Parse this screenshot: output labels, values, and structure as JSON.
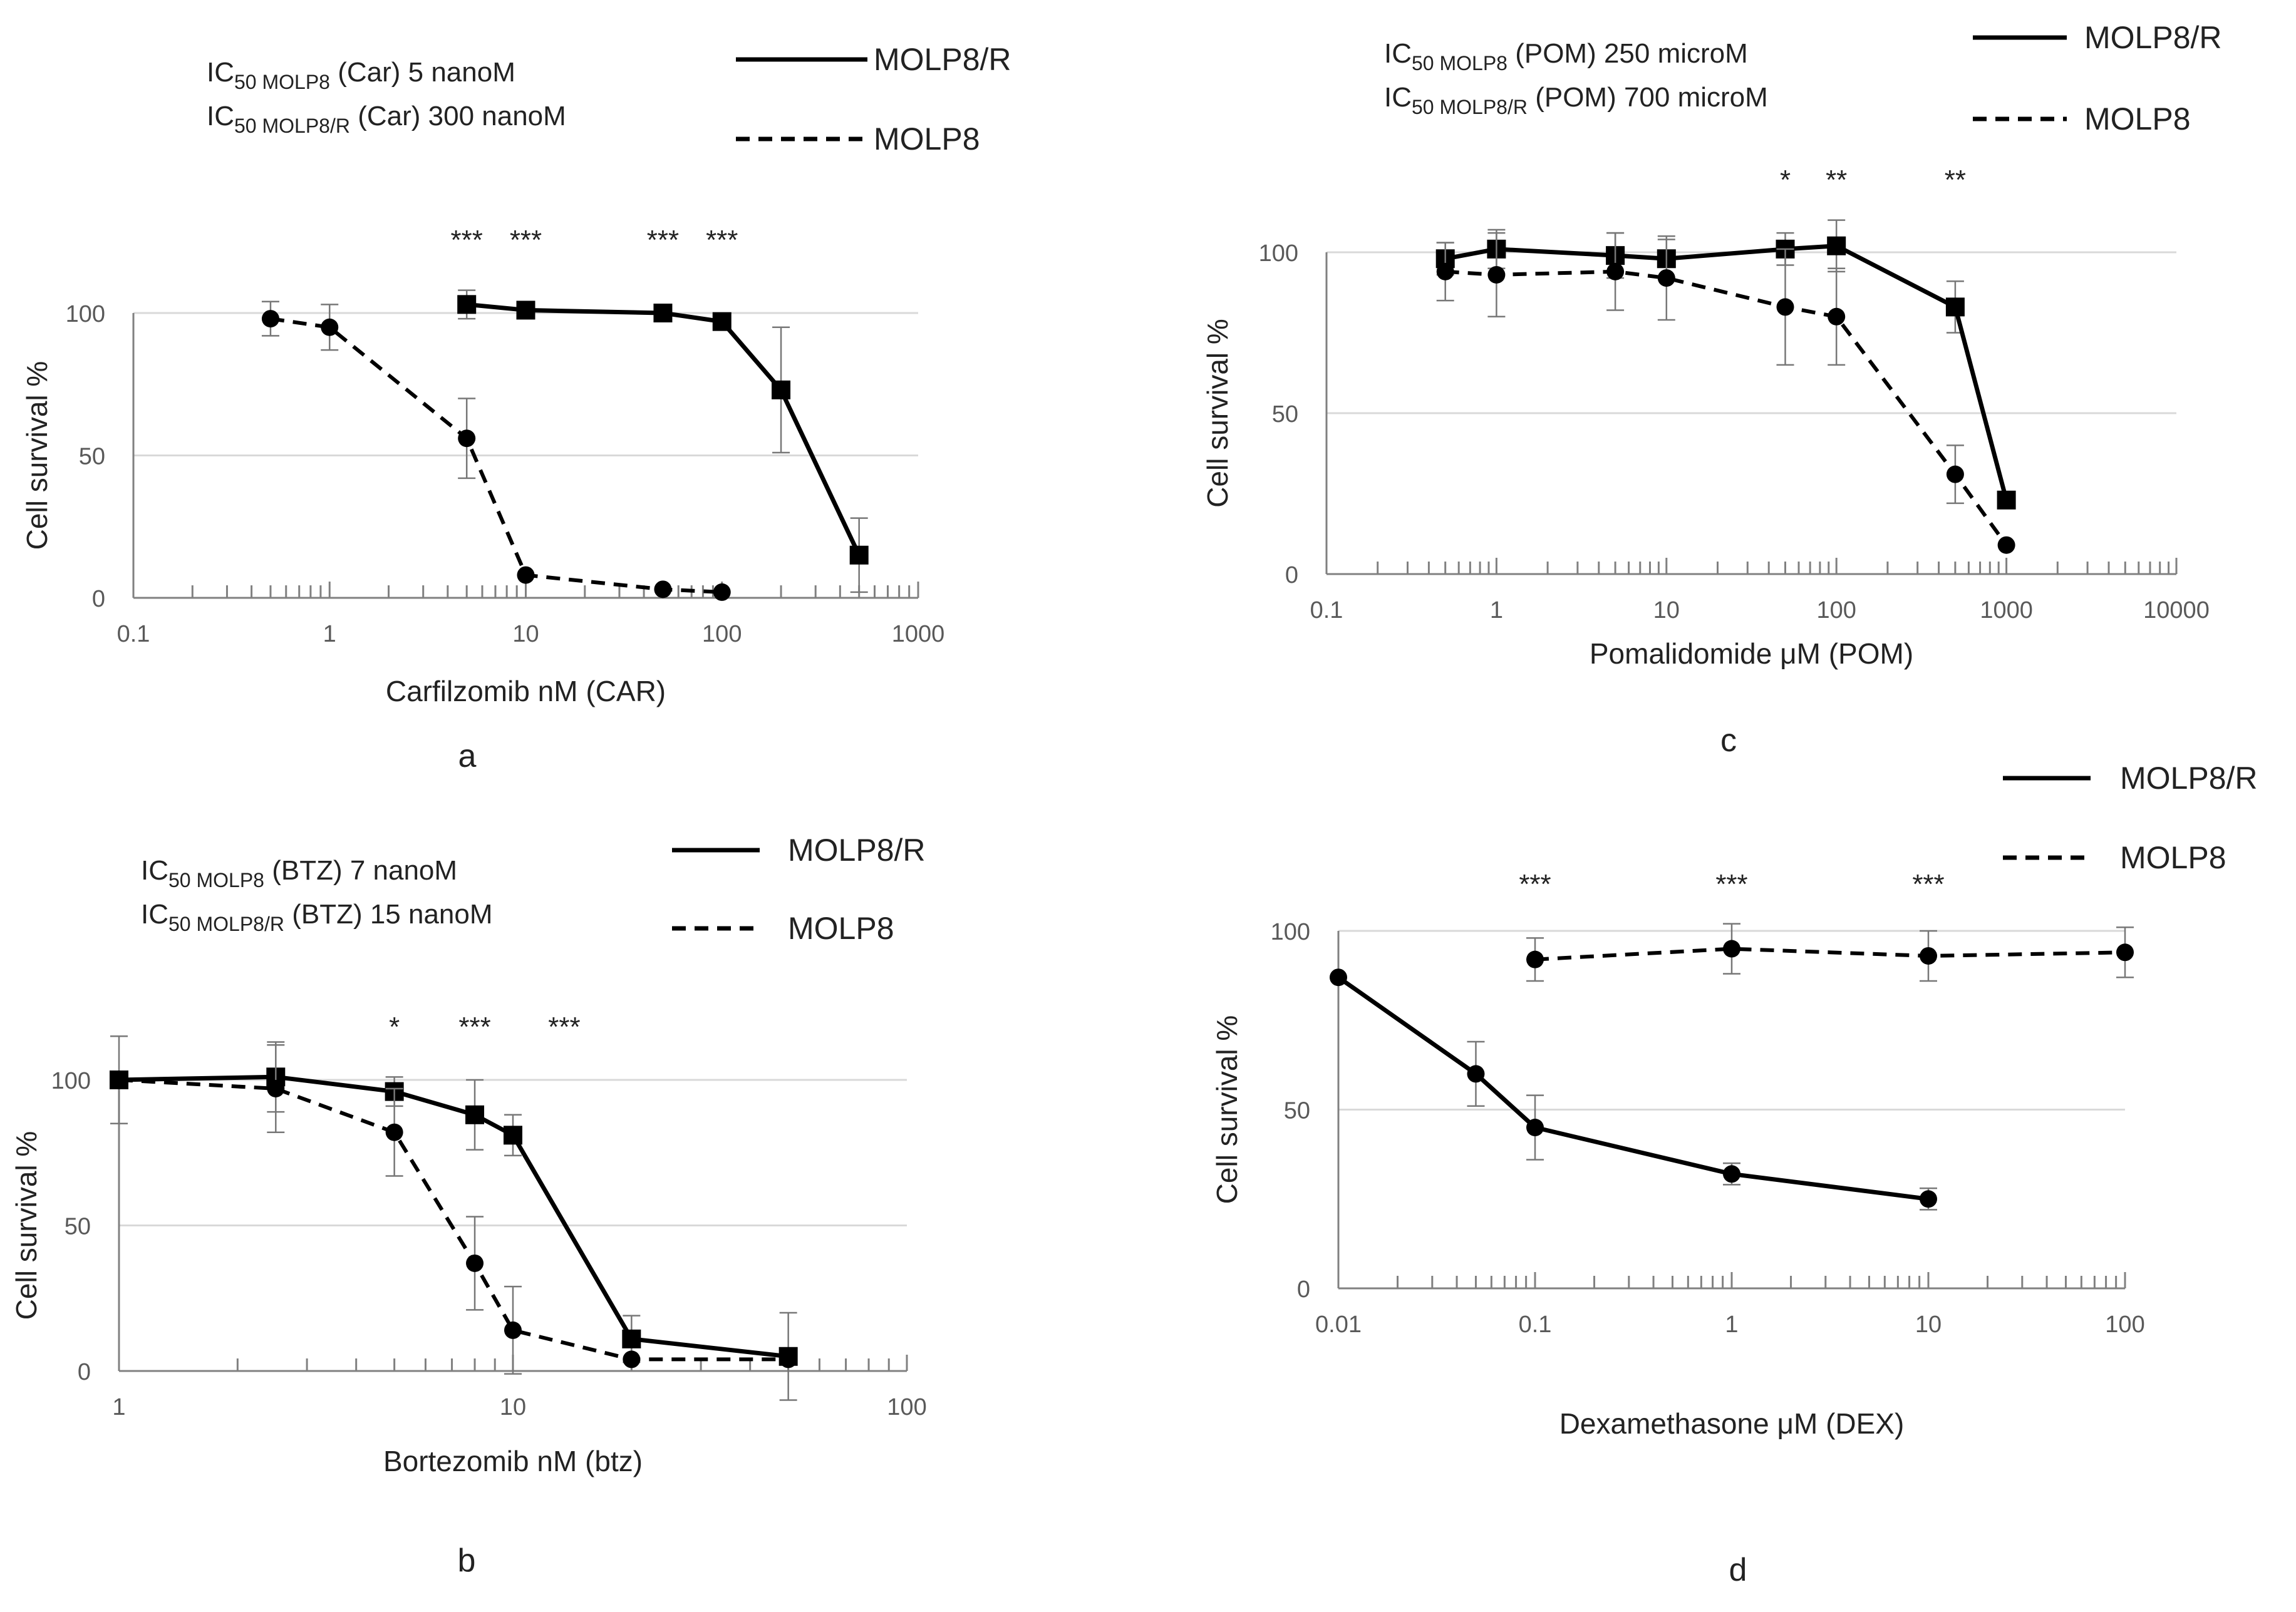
{
  "chart_data": [
    {
      "id": "a",
      "type": "line",
      "panel_label": "a",
      "xscale": "log",
      "xlim": [
        0.1,
        1000
      ],
      "ylim": [
        0,
        100
      ],
      "xticks": [
        "0.1",
        "1",
        "10",
        "100",
        "1000"
      ],
      "yticks": [
        "0",
        "50",
        "100"
      ],
      "xlabel": "Carfilzomib nM (CAR)",
      "ylabel": "Cell survival %",
      "grid": true,
      "ic50": [
        {
          "prefix": "IC",
          "sub": "50 MOLP8",
          "text": " (Car) 5 nanoM"
        },
        {
          "prefix": "IC",
          "sub": "50 MOLP8/R",
          "text": " (Car) 300 nanoM"
        }
      ],
      "legend": [
        {
          "name": "MOLP8/R",
          "style": "solid"
        },
        {
          "name": "MOLP8",
          "style": "dashed"
        }
      ],
      "significance": [
        {
          "x": 5,
          "label": "***"
        },
        {
          "x": 10,
          "label": "***"
        },
        {
          "x": 50,
          "label": "***"
        },
        {
          "x": 100,
          "label": "***"
        }
      ],
      "series": [
        {
          "name": "MOLP8/R",
          "style": "solid",
          "marker": "square",
          "x": [
            5,
            10,
            50,
            100,
            200,
            500
          ],
          "y": [
            103,
            101,
            100,
            97,
            73,
            15
          ],
          "err": [
            5,
            2,
            2,
            2,
            22,
            13
          ]
        },
        {
          "name": "MOLP8",
          "style": "dashed",
          "marker": "circle",
          "x": [
            0.5,
            1,
            5,
            10,
            50,
            100
          ],
          "y": [
            98,
            95,
            56,
            8,
            3,
            2
          ],
          "err": [
            6,
            8,
            14,
            0,
            0,
            0
          ]
        }
      ]
    },
    {
      "id": "b",
      "type": "line",
      "panel_label": "b",
      "xscale": "log",
      "xlim": [
        1,
        100
      ],
      "ylim": [
        0,
        100
      ],
      "xticks": [
        "1",
        "10",
        "100"
      ],
      "yticks": [
        "0",
        "50",
        "100"
      ],
      "xlabel": "Bortezomib nM (btz)",
      "ylabel": "Cell survival %",
      "grid": true,
      "ic50": [
        {
          "prefix": "IC",
          "sub": "50 MOLP8",
          "text": " (BTZ) 7 nanoM"
        },
        {
          "prefix": "IC",
          "sub": "50 MOLP8/R",
          "text": " (BTZ) 15 nanoM"
        }
      ],
      "legend": [
        {
          "name": "MOLP8/R",
          "style": "solid"
        },
        {
          "name": "MOLP8",
          "style": "dashed"
        }
      ],
      "significance": [
        {
          "x": 5,
          "label": "*"
        },
        {
          "x": 8,
          "label": "***"
        },
        {
          "x": 13.5,
          "label": "***"
        }
      ],
      "series": [
        {
          "name": "MOLP8/R",
          "style": "solid",
          "marker": "square",
          "x": [
            1,
            2.5,
            5,
            8,
            10,
            20,
            50
          ],
          "y": [
            100,
            101,
            96,
            88,
            81,
            11,
            5
          ],
          "err": [
            15,
            12,
            5,
            12,
            7,
            8,
            15
          ]
        },
        {
          "name": "MOLP8",
          "style": "dashed",
          "marker": "circle",
          "x": [
            1,
            2.5,
            5,
            8,
            10,
            20,
            50
          ],
          "y": [
            100,
            97,
            82,
            37,
            14,
            4,
            4
          ],
          "err": [
            0,
            15,
            15,
            16,
            15,
            0,
            0
          ]
        }
      ]
    },
    {
      "id": "c",
      "type": "line",
      "panel_label": "c",
      "xscale": "log",
      "xlim": [
        0.1,
        10000
      ],
      "ylim": [
        0,
        100
      ],
      "xticks": [
        "0.1",
        "1",
        "10",
        "100",
        "1000",
        "10000"
      ],
      "yticks": [
        "0",
        "50",
        "100"
      ],
      "xlabel": "Pomalidomide μM (POM)",
      "ylabel": "Cell survival %",
      "grid": true,
      "ic50": [
        {
          "prefix": "IC",
          "sub": "50 MOLP8",
          "text": " (POM) 250 microM"
        },
        {
          "prefix": "IC",
          "sub": "50 MOLP8/R",
          "text": " (POM) 700 microM"
        }
      ],
      "legend": [
        {
          "name": "MOLP8/R",
          "style": "solid"
        },
        {
          "name": "MOLP8",
          "style": "dashed"
        }
      ],
      "significance": [
        {
          "x": 50,
          "label": "*"
        },
        {
          "x": 100,
          "label": "**"
        },
        {
          "x": 500,
          "label": "**"
        }
      ],
      "series": [
        {
          "name": "MOLP8/R",
          "style": "solid",
          "marker": "square",
          "x": [
            0.5,
            1,
            5,
            10,
            50,
            100,
            500,
            1000
          ],
          "y": [
            98,
            101,
            99,
            98,
            101,
            102,
            83,
            23
          ],
          "err": [
            5,
            6,
            7,
            6,
            5,
            8,
            8,
            0
          ]
        },
        {
          "name": "MOLP8",
          "style": "dashed",
          "marker": "circle",
          "x": [
            0.5,
            1,
            5,
            10,
            50,
            100,
            500,
            1000
          ],
          "y": [
            94,
            93,
            94,
            92,
            83,
            80,
            31,
            9
          ],
          "err": [
            9,
            13,
            12,
            13,
            18,
            15,
            9,
            0
          ]
        }
      ]
    },
    {
      "id": "d",
      "type": "line",
      "panel_label": "d",
      "xscale": "log",
      "xlim": [
        0.01,
        100
      ],
      "ylim": [
        0,
        100
      ],
      "xticks": [
        "0.01",
        "0.1",
        "1",
        "10",
        "100"
      ],
      "yticks": [
        "0",
        "50",
        "100"
      ],
      "xlabel": "Dexamethasone μM (DEX)",
      "ylabel": "Cell survival %",
      "grid": true,
      "ic50": [],
      "legend": [
        {
          "name": "MOLP8/R",
          "style": "solid"
        },
        {
          "name": "MOLP8",
          "style": "dashed"
        }
      ],
      "significance": [
        {
          "x": 0.1,
          "label": "***"
        },
        {
          "x": 1,
          "label": "***"
        },
        {
          "x": 10,
          "label": "***"
        }
      ],
      "series": [
        {
          "name": "MOLP8/R",
          "style": "solid",
          "marker": "circle",
          "x": [
            0.01,
            0.05,
            0.1,
            1,
            10
          ],
          "y": [
            87,
            60,
            45,
            32,
            25
          ],
          "err": [
            0,
            9,
            9,
            3,
            3
          ]
        },
        {
          "name": "MOLP8",
          "style": "dashed",
          "marker": "circle",
          "x": [
            0.1,
            1,
            10,
            100
          ],
          "y": [
            92,
            95,
            93,
            94
          ],
          "err": [
            6,
            7,
            7,
            7
          ]
        }
      ]
    }
  ]
}
